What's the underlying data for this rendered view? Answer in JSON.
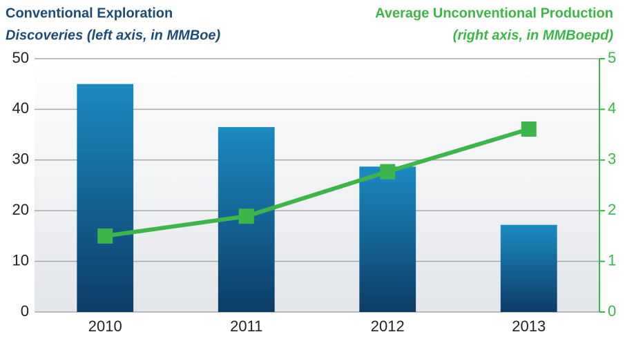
{
  "chart_data": {
    "type": "combo",
    "left_title": "Conventional Exploration",
    "left_subtitle": "Discoveries (left axis, in MMBoe)",
    "right_title": "Average Unconventional Production",
    "right_subtitle": "(right axis, in MMBoepd)",
    "categories": [
      "2010",
      "2011",
      "2012",
      "2013"
    ],
    "series": [
      {
        "type": "bar",
        "color": "#1a6a9e",
        "values": [
          45,
          36.5,
          28.7,
          17.2
        ]
      },
      {
        "type": "line",
        "color": "#3db54a",
        "axis": "y2",
        "values": [
          1.5,
          1.89,
          2.77,
          3.61
        ]
      }
    ],
    "ylim": [
      0,
      50
    ],
    "yticks": [
      0,
      10,
      20,
      30,
      40,
      50
    ],
    "y2lim": [
      0,
      5
    ],
    "y2ticks": [
      0,
      1,
      2,
      3,
      4,
      5
    ],
    "grid": true
  }
}
